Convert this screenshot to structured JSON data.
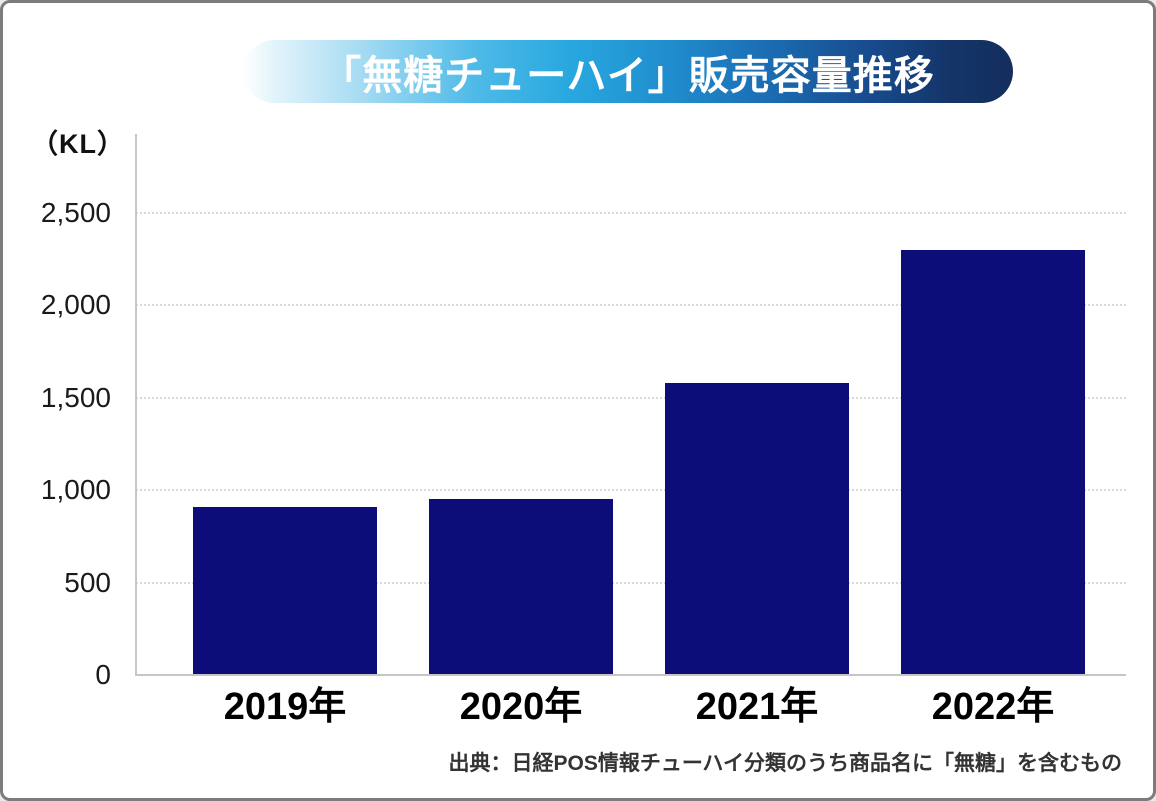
{
  "page": {
    "background_color": "#ffffff",
    "border_color": "#7c7c7c"
  },
  "chart_data": {
    "type": "bar",
    "title": "「無糖チューハイ」販売容量推移",
    "unit_label": "（KL）",
    "categories": [
      "2019年",
      "2020年",
      "2021年",
      "2022年"
    ],
    "values": [
      910,
      950,
      1580,
      2300
    ],
    "ylim": [
      0,
      2500
    ],
    "yticks": [
      0,
      500,
      1000,
      1500,
      2000,
      2500
    ],
    "ytick_labels": [
      "0",
      "500",
      "1,000",
      "1,500",
      "2,000",
      "2,500"
    ],
    "grid": "horizontal-dotted",
    "legend": "none",
    "bar_color": "#0d0d7a",
    "gridline_color": "#d8d8d8",
    "axis_color": "#c6c6c6",
    "title_text_color": "#ffffff",
    "title_gradient": [
      "#ffffff",
      "#29a8e0",
      "#142e5d"
    ],
    "source": "出典：日経POS情報チューハイ分類のうち商品名に「無糖」を含むもの"
  }
}
